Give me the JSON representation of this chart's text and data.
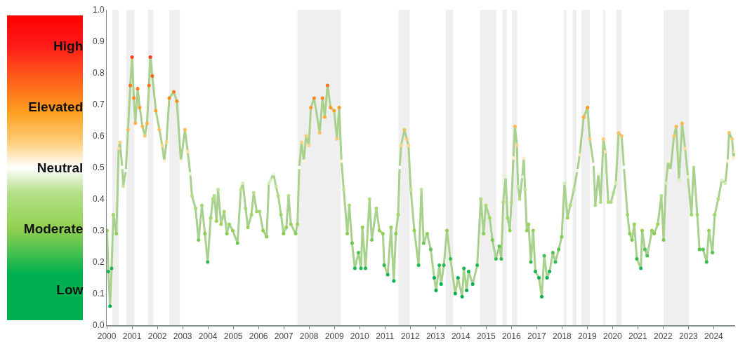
{
  "chart_data": {
    "type": "line",
    "x": [
      2000.01,
      2000.06,
      2000.13,
      2000.19,
      2000.26,
      2000.38,
      2000.47,
      2000.52,
      2000.61,
      2000.65,
      2000.75,
      2000.84,
      2000.93,
      2001.0,
      2001.07,
      2001.13,
      2001.22,
      2001.3,
      2001.41,
      2001.51,
      2001.59,
      2001.67,
      2001.72,
      2001.8,
      2001.94,
      2002.08,
      2002.19,
      2002.27,
      2002.36,
      2002.47,
      2002.65,
      2002.77,
      2002.93,
      2003.09,
      2003.2,
      2003.3,
      2003.37,
      2003.51,
      2003.63,
      2003.76,
      2003.88,
      2003.99,
      2004.11,
      2004.2,
      2004.25,
      2004.34,
      2004.4,
      2004.52,
      2004.64,
      2004.75,
      2004.84,
      2004.98,
      2005.17,
      2005.3,
      2005.38,
      2005.49,
      2005.58,
      2005.72,
      2005.81,
      2005.93,
      2006.04,
      2006.18,
      2006.32,
      2006.41,
      2006.48,
      2006.59,
      2006.69,
      2006.78,
      2006.89,
      2006.99,
      2007.1,
      2007.19,
      2007.28,
      2007.47,
      2007.54,
      2007.61,
      2007.7,
      2007.79,
      2007.88,
      2007.99,
      2008.07,
      2008.2,
      2008.42,
      2008.53,
      2008.62,
      2008.73,
      2008.85,
      2008.99,
      2009.1,
      2009.19,
      2009.28,
      2009.37,
      2009.51,
      2009.59,
      2009.7,
      2009.81,
      2009.95,
      2010.05,
      2010.11,
      2010.23,
      2010.39,
      2010.48,
      2010.66,
      2010.78,
      2010.92,
      2010.97,
      2011.11,
      2011.24,
      2011.35,
      2011.43,
      2011.52,
      2011.58,
      2011.64,
      2011.77,
      2011.86,
      2011.93,
      2012.02,
      2012.16,
      2012.33,
      2012.44,
      2012.53,
      2012.67,
      2012.81,
      2012.95,
      2013.02,
      2013.15,
      2013.22,
      2013.33,
      2013.45,
      2013.59,
      2013.78,
      2013.89,
      2014.05,
      2014.12,
      2014.23,
      2014.31,
      2014.47,
      2014.65,
      2014.79,
      2014.9,
      2014.99,
      2015.14,
      2015.25,
      2015.39,
      2015.52,
      2015.6,
      2015.68,
      2015.77,
      2015.85,
      2015.94,
      2016.0,
      2016.08,
      2016.14,
      2016.22,
      2016.26,
      2016.33,
      2016.43,
      2016.49,
      2016.54,
      2016.61,
      2016.68,
      2016.77,
      2016.86,
      2016.95,
      2017.09,
      2017.2,
      2017.3,
      2017.41,
      2017.51,
      2017.64,
      2017.74,
      2017.87,
      2017.99,
      2018.1,
      2018.22,
      2018.33,
      2018.47,
      2018.61,
      2018.7,
      2018.86,
      2019.01,
      2019.1,
      2019.25,
      2019.32,
      2019.44,
      2019.53,
      2019.64,
      2019.72,
      2019.83,
      2019.94,
      2020.04,
      2020.13,
      2020.24,
      2020.36,
      2020.45,
      2020.59,
      2020.68,
      2020.77,
      2020.86,
      2020.96,
      2021.12,
      2021.17,
      2021.28,
      2021.37,
      2021.56,
      2021.65,
      2021.79,
      2021.93,
      2022.02,
      2022.11,
      2022.2,
      2022.29,
      2022.43,
      2022.52,
      2022.63,
      2022.75,
      2022.87,
      2022.98,
      2023.12,
      2023.21,
      2023.35,
      2023.44,
      2023.58,
      2023.72,
      2023.81,
      2023.95,
      2024.04,
      2024.18,
      2024.32,
      2024.46,
      2024.55,
      2024.61,
      2024.73,
      2024.78,
      2024.83
    ],
    "series": [
      {
        "color": "#a9d18e",
        "values": [
          0.3,
          0.17,
          0.06,
          0.18,
          0.35,
          0.29,
          0.56,
          0.58,
          0.5,
          0.44,
          0.49,
          0.62,
          0.76,
          0.85,
          0.72,
          0.64,
          0.75,
          0.69,
          0.63,
          0.6,
          0.64,
          0.76,
          0.85,
          0.79,
          0.68,
          0.62,
          0.57,
          0.52,
          0.58,
          0.72,
          0.74,
          0.71,
          0.52,
          0.62,
          0.55,
          0.48,
          0.41,
          0.37,
          0.27,
          0.38,
          0.29,
          0.2,
          0.34,
          0.4,
          0.41,
          0.33,
          0.43,
          0.32,
          0.36,
          0.29,
          0.32,
          0.3,
          0.26,
          0.43,
          0.45,
          0.37,
          0.31,
          0.35,
          0.42,
          0.36,
          0.36,
          0.3,
          0.28,
          0.45,
          0.46,
          0.48,
          0.44,
          0.41,
          0.35,
          0.29,
          0.31,
          0.41,
          0.32,
          0.29,
          0.32,
          0.5,
          0.58,
          0.52,
          0.6,
          0.57,
          0.69,
          0.72,
          0.61,
          0.72,
          0.66,
          0.76,
          0.69,
          0.68,
          0.59,
          0.69,
          0.52,
          0.43,
          0.29,
          0.38,
          0.26,
          0.18,
          0.23,
          0.18,
          0.31,
          0.18,
          0.4,
          0.27,
          0.37,
          0.3,
          0.29,
          0.19,
          0.16,
          0.31,
          0.14,
          0.29,
          0.35,
          0.5,
          0.57,
          0.62,
          0.59,
          0.57,
          0.43,
          0.3,
          0.19,
          0.43,
          0.26,
          0.29,
          0.24,
          0.15,
          0.11,
          0.19,
          0.13,
          0.19,
          0.3,
          0.21,
          0.1,
          0.15,
          0.09,
          0.18,
          0.11,
          0.17,
          0.13,
          0.19,
          0.4,
          0.29,
          0.38,
          0.34,
          0.27,
          0.21,
          0.25,
          0.21,
          0.39,
          0.47,
          0.34,
          0.3,
          0.39,
          0.53,
          0.63,
          0.57,
          0.44,
          0.4,
          0.47,
          0.53,
          0.43,
          0.3,
          0.32,
          0.2,
          0.3,
          0.17,
          0.15,
          0.09,
          0.22,
          0.15,
          0.17,
          0.23,
          0.2,
          0.24,
          0.28,
          0.45,
          0.34,
          0.38,
          0.43,
          0.49,
          0.54,
          0.66,
          0.69,
          0.59,
          0.51,
          0.38,
          0.48,
          0.39,
          0.59,
          0.55,
          0.39,
          0.39,
          0.42,
          0.45,
          0.61,
          0.6,
          0.5,
          0.35,
          0.29,
          0.27,
          0.32,
          0.21,
          0.18,
          0.3,
          0.24,
          0.22,
          0.3,
          0.29,
          0.32,
          0.41,
          0.27,
          0.45,
          0.52,
          0.49,
          0.6,
          0.63,
          0.46,
          0.64,
          0.56,
          0.47,
          0.35,
          0.51,
          0.35,
          0.24,
          0.24,
          0.2,
          0.3,
          0.23,
          0.35,
          0.4,
          0.46,
          0.45,
          0.52,
          0.61,
          0.59,
          0.53,
          0.55
        ]
      }
    ],
    "xlim": [
      2000,
      2024.85
    ],
    "xticks": [
      2000,
      2001,
      2002,
      2003,
      2004,
      2005,
      2006,
      2007,
      2008,
      2009,
      2010,
      2011,
      2012,
      2013,
      2014,
      2015,
      2016,
      2017,
      2018,
      2019,
      2020,
      2021,
      2022,
      2023,
      2024
    ],
    "ylim": [
      0,
      1
    ],
    "yticks": [
      {
        "value": 0,
        "label": "0.0"
      },
      {
        "value": 0.1,
        "label": "0.1"
      },
      {
        "value": 0.2,
        "label": "0.2"
      },
      {
        "value": 0.3,
        "label": "0.3"
      },
      {
        "value": 0.4,
        "label": "0.4"
      },
      {
        "value": 0.5,
        "label": "0.5"
      },
      {
        "value": 0.6,
        "label": "0.6"
      },
      {
        "value": 0.7,
        "label": "0.7"
      },
      {
        "value": 0.8,
        "label": "0.8"
      },
      {
        "value": 0.9,
        "label": "0.9"
      },
      {
        "value": 1,
        "label": "1.0"
      }
    ],
    "clim": [
      0,
      1
    ],
    "cticks": [
      {
        "value": 0.9,
        "label": "High"
      },
      {
        "value": 0.7,
        "label": "Elevated"
      },
      {
        "value": 0.5,
        "label": "Neutral"
      },
      {
        "value": 0.3,
        "label": "Moderate"
      },
      {
        "value": 0.1,
        "label": "Low"
      }
    ],
    "bands": [
      {
        "axis": "x",
        "from": 2000.22,
        "to": 2000.47,
        "color": "#efefef"
      },
      {
        "axis": "x",
        "from": 2000.77,
        "to": 2001.09,
        "color": "#efefef"
      },
      {
        "axis": "x",
        "from": 2001.62,
        "to": 2001.84,
        "color": "#efefef"
      },
      {
        "axis": "x",
        "from": 2002.47,
        "to": 2002.89,
        "color": "#efefef"
      },
      {
        "axis": "x",
        "from": 2007.54,
        "to": 2009.25,
        "color": "#efefef"
      },
      {
        "axis": "x",
        "from": 2011.53,
        "to": 2011.98,
        "color": "#efefef"
      },
      {
        "axis": "x",
        "from": 2013.41,
        "to": 2013.7,
        "color": "#efefef"
      },
      {
        "axis": "x",
        "from": 2014.76,
        "to": 2015.4,
        "color": "#efefef"
      },
      {
        "axis": "x",
        "from": 2015.64,
        "to": 2015.82,
        "color": "#efefef"
      },
      {
        "axis": "x",
        "from": 2016.02,
        "to": 2016.23,
        "color": "#efefef"
      },
      {
        "axis": "x",
        "from": 2018.07,
        "to": 2018.19,
        "color": "#efefef"
      },
      {
        "axis": "x",
        "from": 2018.42,
        "to": 2018.57,
        "color": "#efefef"
      },
      {
        "axis": "x",
        "from": 2018.77,
        "to": 2019.1,
        "color": "#efefef"
      },
      {
        "axis": "x",
        "from": 2019.62,
        "to": 2019.71,
        "color": "#efefef"
      },
      {
        "axis": "x",
        "from": 2020.15,
        "to": 2020.36,
        "color": "#efefef"
      },
      {
        "axis": "x",
        "from": 2022.02,
        "to": 2023.03,
        "color": "#efefef"
      }
    ],
    "grid": false,
    "line_style": "solid"
  }
}
